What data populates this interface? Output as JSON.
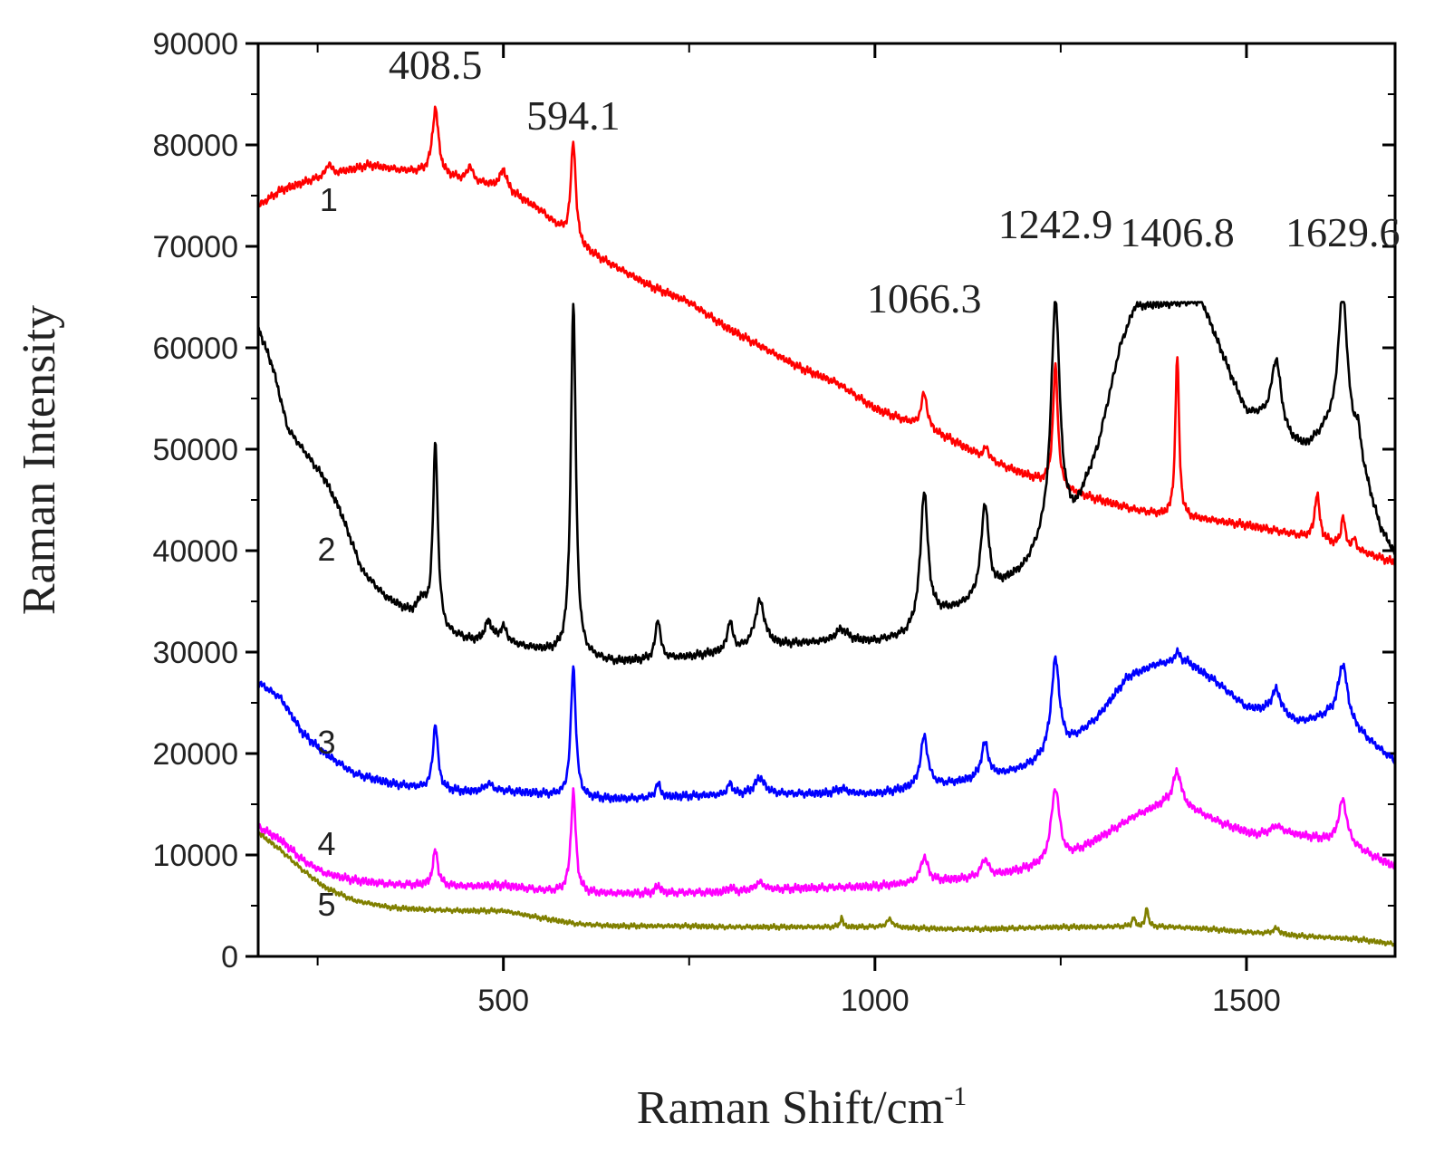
{
  "chart_data": {
    "type": "line",
    "xlabel": "Raman Shift/cm",
    "xlabel_sup": "-1",
    "ylabel": "Raman Intensity",
    "xlim": [
      170,
      1700
    ],
    "ylim": [
      0,
      90000
    ],
    "x_ticks": [
      500,
      1000,
      1500
    ],
    "y_ticks": [
      0,
      10000,
      20000,
      30000,
      40000,
      50000,
      60000,
      70000,
      80000,
      90000
    ],
    "peak_labels": [
      {
        "text": "408.5",
        "x": 408.5,
        "y": 86500
      },
      {
        "text": "594.1",
        "x": 594.1,
        "y": 81500
      },
      {
        "text": "1066.3",
        "x": 1066.3,
        "y": 63500
      },
      {
        "text": "1242.9",
        "x": 1242.9,
        "y": 70800
      },
      {
        "text": "1406.8",
        "x": 1406.8,
        "y": 70000
      },
      {
        "text": "1629.6",
        "x": 1629.6,
        "y": 70000
      }
    ],
    "series": [
      {
        "name": "1",
        "color": "#ff0000",
        "label_pos": [
          265,
          73500
        ],
        "baseline": [
          [
            170,
            74000
          ],
          [
            200,
            75500
          ],
          [
            240,
            76500
          ],
          [
            280,
            77300
          ],
          [
            320,
            78000
          ],
          [
            360,
            77500
          ],
          [
            400,
            77200
          ],
          [
            450,
            76500
          ],
          [
            500,
            75800
          ],
          [
            550,
            73500
          ],
          [
            600,
            70000
          ],
          [
            650,
            68000
          ],
          [
            700,
            66000
          ],
          [
            750,
            64500
          ],
          [
            800,
            62000
          ],
          [
            850,
            60000
          ],
          [
            900,
            58000
          ],
          [
            950,
            56500
          ],
          [
            1000,
            54000
          ],
          [
            1050,
            52500
          ],
          [
            1100,
            51000
          ],
          [
            1150,
            49000
          ],
          [
            1200,
            47500
          ],
          [
            1250,
            46000
          ],
          [
            1300,
            45000
          ],
          [
            1350,
            44000
          ],
          [
            1400,
            43300
          ],
          [
            1450,
            43000
          ],
          [
            1500,
            42500
          ],
          [
            1550,
            41800
          ],
          [
            1600,
            41000
          ],
          [
            1650,
            40000
          ],
          [
            1700,
            38800
          ]
        ],
        "peaks": [
          [
            265,
            1200,
            4
          ],
          [
            408.5,
            6500,
            5
          ],
          [
            455,
            1500,
            4
          ],
          [
            500,
            1800,
            5
          ],
          [
            594.1,
            10000,
            4
          ],
          [
            1066.3,
            3500,
            5
          ],
          [
            1150,
            1200,
            4
          ],
          [
            1242.9,
            12000,
            4
          ],
          [
            1406.8,
            16000,
            3
          ],
          [
            1595,
            4500,
            4
          ],
          [
            1630,
            3000,
            3
          ],
          [
            1645,
            1000,
            3
          ]
        ]
      },
      {
        "name": "2",
        "color": "#000000",
        "label_pos": [
          262,
          39000
        ],
        "baseline": [
          [
            170,
            62000
          ],
          [
            190,
            58000
          ],
          [
            210,
            52000
          ],
          [
            230,
            50000
          ],
          [
            260,
            47000
          ],
          [
            280,
            44000
          ],
          [
            310,
            38000
          ],
          [
            340,
            35500
          ],
          [
            370,
            34000
          ],
          [
            390,
            33500
          ],
          [
            420,
            31800
          ],
          [
            460,
            31000
          ],
          [
            500,
            30800
          ],
          [
            560,
            30000
          ],
          [
            600,
            29500
          ],
          [
            650,
            29000
          ],
          [
            700,
            29200
          ],
          [
            750,
            29500
          ],
          [
            800,
            30000
          ],
          [
            850,
            30500
          ],
          [
            900,
            30800
          ],
          [
            950,
            31000
          ],
          [
            1000,
            31000
          ],
          [
            1040,
            31500
          ],
          [
            1080,
            33500
          ],
          [
            1120,
            34500
          ],
          [
            1160,
            36000
          ],
          [
            1200,
            38000
          ],
          [
            1230,
            41000
          ],
          [
            1270,
            43500
          ],
          [
            1300,
            50000
          ],
          [
            1330,
            60000
          ],
          [
            1350,
            64000
          ],
          [
            1440,
            64500
          ],
          [
            1480,
            57000
          ],
          [
            1500,
            53500
          ],
          [
            1520,
            53000
          ],
          [
            1560,
            50500
          ],
          [
            1580,
            50000
          ],
          [
            1610,
            51500
          ],
          [
            1650,
            49000
          ],
          [
            1680,
            42000
          ],
          [
            1700,
            39500
          ]
        ],
        "peaks": [
          [
            390,
            1500,
            6
          ],
          [
            408.5,
            18000,
            4
          ],
          [
            480,
            2000,
            6
          ],
          [
            500,
            1500,
            6
          ],
          [
            594.1,
            35000,
            4
          ],
          [
            708,
            4000,
            4
          ],
          [
            805,
            3000,
            4
          ],
          [
            845,
            4500,
            8
          ],
          [
            955,
            1200,
            10
          ],
          [
            1066.3,
            13000,
            6
          ],
          [
            1148,
            9000,
            6
          ],
          [
            1242.9,
            23000,
            7
          ],
          [
            1540,
            7000,
            8
          ],
          [
            1629.6,
            15000,
            8
          ],
          [
            1650,
            2000,
            5
          ]
        ],
        "clip": 64500
      },
      {
        "name": "3",
        "color": "#0000ff",
        "label_pos": [
          262,
          20000
        ],
        "baseline": [
          [
            170,
            27000
          ],
          [
            200,
            25500
          ],
          [
            230,
            22000
          ],
          [
            260,
            20000
          ],
          [
            300,
            18000
          ],
          [
            350,
            17000
          ],
          [
            400,
            16500
          ],
          [
            450,
            16200
          ],
          [
            500,
            16300
          ],
          [
            550,
            16000
          ],
          [
            600,
            15600
          ],
          [
            650,
            15500
          ],
          [
            700,
            15600
          ],
          [
            750,
            15800
          ],
          [
            800,
            15900
          ],
          [
            850,
            16000
          ],
          [
            900,
            16000
          ],
          [
            950,
            16000
          ],
          [
            1000,
            16000
          ],
          [
            1050,
            16500
          ],
          [
            1100,
            17000
          ],
          [
            1150,
            17500
          ],
          [
            1200,
            18500
          ],
          [
            1250,
            20000
          ],
          [
            1300,
            23500
          ],
          [
            1340,
            27500
          ],
          [
            1380,
            28800
          ],
          [
            1420,
            29000
          ],
          [
            1460,
            27000
          ],
          [
            1500,
            24500
          ],
          [
            1530,
            24000
          ],
          [
            1570,
            23000
          ],
          [
            1610,
            23500
          ],
          [
            1650,
            22000
          ],
          [
            1700,
            19200
          ]
        ],
        "peaks": [
          [
            408.5,
            6500,
            4
          ],
          [
            480,
            800,
            6
          ],
          [
            594.1,
            13000,
            4
          ],
          [
            708,
            1400,
            4
          ],
          [
            805,
            1100,
            4
          ],
          [
            845,
            1600,
            8
          ],
          [
            955,
            500,
            10
          ],
          [
            1066.3,
            5000,
            6
          ],
          [
            1148,
            3500,
            6
          ],
          [
            1242.9,
            9500,
            7
          ],
          [
            1406.8,
            1000,
            5
          ],
          [
            1540,
            2500,
            8
          ],
          [
            1629.6,
            6000,
            8
          ]
        ]
      },
      {
        "name": "4",
        "color": "#ff00ff",
        "label_pos": [
          262,
          10000
        ],
        "baseline": [
          [
            170,
            12800
          ],
          [
            200,
            11500
          ],
          [
            230,
            9500
          ],
          [
            260,
            8200
          ],
          [
            300,
            7500
          ],
          [
            350,
            7100
          ],
          [
            400,
            7000
          ],
          [
            450,
            6900
          ],
          [
            500,
            7000
          ],
          [
            550,
            6500
          ],
          [
            600,
            6200
          ],
          [
            650,
            6200
          ],
          [
            700,
            6200
          ],
          [
            750,
            6300
          ],
          [
            800,
            6300
          ],
          [
            850,
            6500
          ],
          [
            900,
            6700
          ],
          [
            950,
            6800
          ],
          [
            1000,
            6900
          ],
          [
            1050,
            7200
          ],
          [
            1100,
            7500
          ],
          [
            1150,
            7800
          ],
          [
            1200,
            8500
          ],
          [
            1250,
            9200
          ],
          [
            1300,
            11500
          ],
          [
            1350,
            13800
          ],
          [
            1390,
            15000
          ],
          [
            1430,
            14300
          ],
          [
            1470,
            13000
          ],
          [
            1510,
            12000
          ],
          [
            1550,
            12200
          ],
          [
            1600,
            11500
          ],
          [
            1650,
            10500
          ],
          [
            1700,
            8800
          ]
        ],
        "peaks": [
          [
            408.5,
            3500,
            4
          ],
          [
            594.1,
            10000,
            4
          ],
          [
            708,
            800,
            4
          ],
          [
            805,
            500,
            4
          ],
          [
            845,
            800,
            8
          ],
          [
            1066.3,
            2500,
            6
          ],
          [
            1148,
            1800,
            6
          ],
          [
            1242.9,
            7500,
            7
          ],
          [
            1406.8,
            3500,
            7
          ],
          [
            1540,
            700,
            8
          ],
          [
            1629.6,
            4500,
            7
          ]
        ]
      },
      {
        "name": "5",
        "color": "#808000",
        "label_pos": [
          262,
          4000
        ],
        "baseline": [
          [
            170,
            12200
          ],
          [
            200,
            10500
          ],
          [
            230,
            8500
          ],
          [
            260,
            6800
          ],
          [
            300,
            5500
          ],
          [
            350,
            4800
          ],
          [
            400,
            4600
          ],
          [
            450,
            4500
          ],
          [
            500,
            4500
          ],
          [
            550,
            3800
          ],
          [
            600,
            3200
          ],
          [
            650,
            3000
          ],
          [
            700,
            3000
          ],
          [
            750,
            3000
          ],
          [
            800,
            2900
          ],
          [
            850,
            2900
          ],
          [
            900,
            2900
          ],
          [
            950,
            2900
          ],
          [
            1000,
            2900
          ],
          [
            1050,
            2800
          ],
          [
            1100,
            2700
          ],
          [
            1150,
            2700
          ],
          [
            1200,
            2800
          ],
          [
            1250,
            2900
          ],
          [
            1300,
            2900
          ],
          [
            1350,
            3000
          ],
          [
            1400,
            2900
          ],
          [
            1450,
            2700
          ],
          [
            1500,
            2400
          ],
          [
            1550,
            2100
          ],
          [
            1600,
            1900
          ],
          [
            1650,
            1700
          ],
          [
            1700,
            1200
          ]
        ],
        "peaks": [
          [
            955,
            1000,
            2
          ],
          [
            1020,
            800,
            5
          ],
          [
            1348,
            900,
            2
          ],
          [
            1366,
            2000,
            2
          ],
          [
            1540,
            600,
            6
          ]
        ]
      }
    ]
  }
}
